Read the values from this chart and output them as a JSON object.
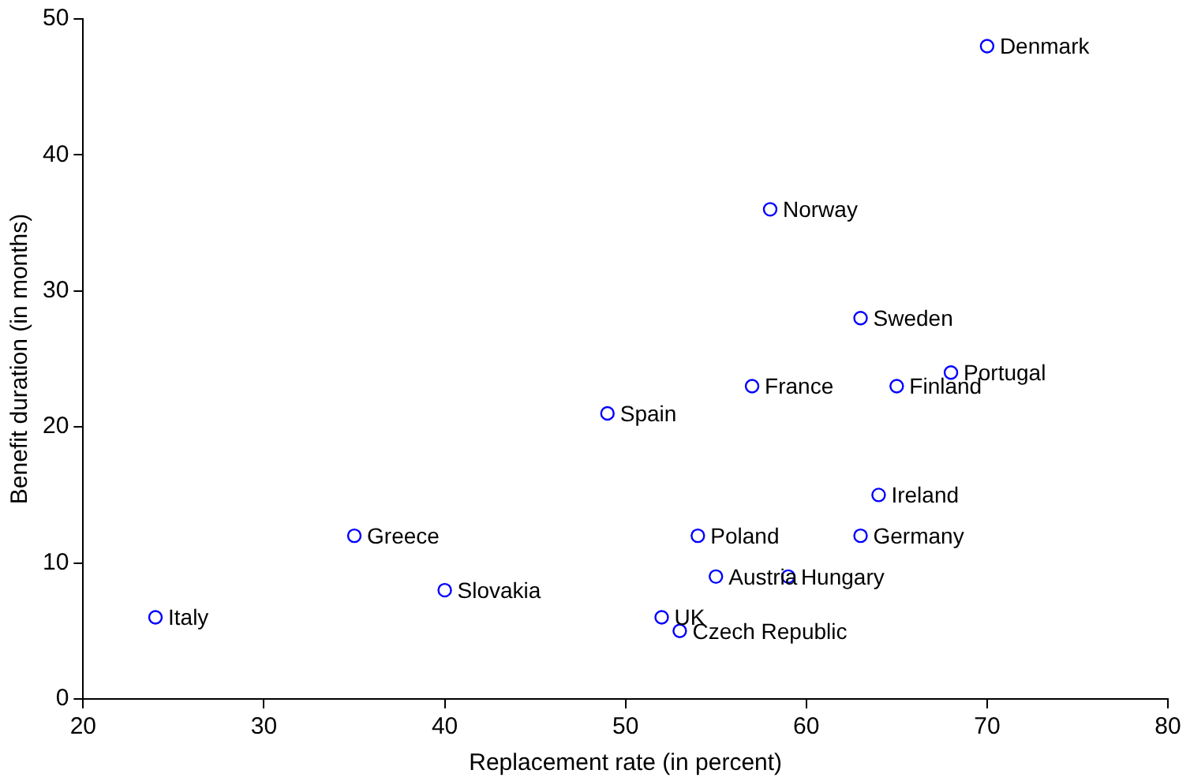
{
  "chart_data": {
    "type": "scatter",
    "xlabel": "Replacement rate (in percent)",
    "ylabel": "Benefit duration (in months)",
    "x": [
      70,
      58,
      63,
      68,
      57,
      65,
      49,
      64,
      35,
      54,
      63,
      55,
      59,
      40,
      24,
      52,
      53
    ],
    "series": [
      {
        "color": "#0000ff",
        "values": [
          48,
          36,
          28,
          24,
          23,
          23,
          21,
          15,
          12,
          12,
          12,
          9,
          9,
          8,
          6,
          6,
          5
        ]
      }
    ],
    "xlim": [
      20,
      80
    ],
    "xticks": [
      20,
      30,
      40,
      50,
      60,
      70,
      80
    ],
    "ylim": [
      0,
      50
    ],
    "yticks": [
      0,
      10,
      20,
      30,
      40,
      50
    ],
    "grid": false,
    "legend": false,
    "marker": "circle",
    "annotations": [
      {
        "text": "Denmark",
        "x": 70,
        "y": 48
      },
      {
        "text": "Norway",
        "x": 58,
        "y": 36
      },
      {
        "text": "Sweden",
        "x": 63,
        "y": 28
      },
      {
        "text": "Portugal",
        "x": 68,
        "y": 24
      },
      {
        "text": "France",
        "x": 57,
        "y": 23
      },
      {
        "text": "Finland",
        "x": 65,
        "y": 23
      },
      {
        "text": "Spain",
        "x": 49,
        "y": 21
      },
      {
        "text": "Ireland",
        "x": 64,
        "y": 15
      },
      {
        "text": "Greece",
        "x": 35,
        "y": 12
      },
      {
        "text": "Poland",
        "x": 54,
        "y": 12
      },
      {
        "text": "Germany",
        "x": 63,
        "y": 12
      },
      {
        "text": "Austria",
        "x": 55,
        "y": 9
      },
      {
        "text": "Hungary",
        "x": 59,
        "y": 9
      },
      {
        "text": "Slovakia",
        "x": 40,
        "y": 8
      },
      {
        "text": "Italy",
        "x": 24,
        "y": 6
      },
      {
        "text": "UK",
        "x": 52,
        "y": 6
      },
      {
        "text": "Czech Republic",
        "x": 53,
        "y": 5
      }
    ]
  }
}
